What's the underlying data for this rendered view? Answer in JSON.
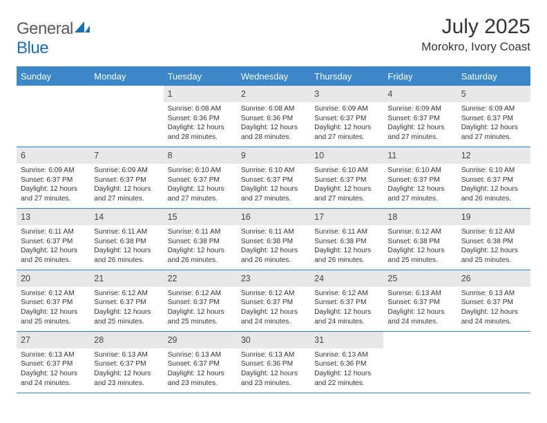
{
  "logo": {
    "general": "General",
    "blue": "Blue"
  },
  "title": "July 2025",
  "location": "Morokro, Ivory Coast",
  "colors": {
    "header_bar": "#3b87c8",
    "daynum_bg": "#e8e8e8",
    "text": "#333333",
    "logo_gray": "#5a5a5a",
    "logo_blue": "#1a6fb0"
  },
  "day_labels": [
    "Sunday",
    "Monday",
    "Tuesday",
    "Wednesday",
    "Thursday",
    "Friday",
    "Saturday"
  ],
  "weeks": [
    [
      null,
      null,
      {
        "n": "1",
        "sr": "Sunrise: 6:08 AM",
        "ss": "Sunset: 6:36 PM",
        "dl": "Daylight: 12 hours and 28 minutes."
      },
      {
        "n": "2",
        "sr": "Sunrise: 6:08 AM",
        "ss": "Sunset: 6:36 PM",
        "dl": "Daylight: 12 hours and 28 minutes."
      },
      {
        "n": "3",
        "sr": "Sunrise: 6:09 AM",
        "ss": "Sunset: 6:37 PM",
        "dl": "Daylight: 12 hours and 27 minutes."
      },
      {
        "n": "4",
        "sr": "Sunrise: 6:09 AM",
        "ss": "Sunset: 6:37 PM",
        "dl": "Daylight: 12 hours and 27 minutes."
      },
      {
        "n": "5",
        "sr": "Sunrise: 6:09 AM",
        "ss": "Sunset: 6:37 PM",
        "dl": "Daylight: 12 hours and 27 minutes."
      }
    ],
    [
      {
        "n": "6",
        "sr": "Sunrise: 6:09 AM",
        "ss": "Sunset: 6:37 PM",
        "dl": "Daylight: 12 hours and 27 minutes."
      },
      {
        "n": "7",
        "sr": "Sunrise: 6:09 AM",
        "ss": "Sunset: 6:37 PM",
        "dl": "Daylight: 12 hours and 27 minutes."
      },
      {
        "n": "8",
        "sr": "Sunrise: 6:10 AM",
        "ss": "Sunset: 6:37 PM",
        "dl": "Daylight: 12 hours and 27 minutes."
      },
      {
        "n": "9",
        "sr": "Sunrise: 6:10 AM",
        "ss": "Sunset: 6:37 PM",
        "dl": "Daylight: 12 hours and 27 minutes."
      },
      {
        "n": "10",
        "sr": "Sunrise: 6:10 AM",
        "ss": "Sunset: 6:37 PM",
        "dl": "Daylight: 12 hours and 27 minutes."
      },
      {
        "n": "11",
        "sr": "Sunrise: 6:10 AM",
        "ss": "Sunset: 6:37 PM",
        "dl": "Daylight: 12 hours and 27 minutes."
      },
      {
        "n": "12",
        "sr": "Sunrise: 6:10 AM",
        "ss": "Sunset: 6:37 PM",
        "dl": "Daylight: 12 hours and 26 minutes."
      }
    ],
    [
      {
        "n": "13",
        "sr": "Sunrise: 6:11 AM",
        "ss": "Sunset: 6:37 PM",
        "dl": "Daylight: 12 hours and 26 minutes."
      },
      {
        "n": "14",
        "sr": "Sunrise: 6:11 AM",
        "ss": "Sunset: 6:38 PM",
        "dl": "Daylight: 12 hours and 26 minutes."
      },
      {
        "n": "15",
        "sr": "Sunrise: 6:11 AM",
        "ss": "Sunset: 6:38 PM",
        "dl": "Daylight: 12 hours and 26 minutes."
      },
      {
        "n": "16",
        "sr": "Sunrise: 6:11 AM",
        "ss": "Sunset: 6:38 PM",
        "dl": "Daylight: 12 hours and 26 minutes."
      },
      {
        "n": "17",
        "sr": "Sunrise: 6:11 AM",
        "ss": "Sunset: 6:38 PM",
        "dl": "Daylight: 12 hours and 26 minutes."
      },
      {
        "n": "18",
        "sr": "Sunrise: 6:12 AM",
        "ss": "Sunset: 6:38 PM",
        "dl": "Daylight: 12 hours and 25 minutes."
      },
      {
        "n": "19",
        "sr": "Sunrise: 6:12 AM",
        "ss": "Sunset: 6:38 PM",
        "dl": "Daylight: 12 hours and 25 minutes."
      }
    ],
    [
      {
        "n": "20",
        "sr": "Sunrise: 6:12 AM",
        "ss": "Sunset: 6:37 PM",
        "dl": "Daylight: 12 hours and 25 minutes."
      },
      {
        "n": "21",
        "sr": "Sunrise: 6:12 AM",
        "ss": "Sunset: 6:37 PM",
        "dl": "Daylight: 12 hours and 25 minutes."
      },
      {
        "n": "22",
        "sr": "Sunrise: 6:12 AM",
        "ss": "Sunset: 6:37 PM",
        "dl": "Daylight: 12 hours and 25 minutes."
      },
      {
        "n": "23",
        "sr": "Sunrise: 6:12 AM",
        "ss": "Sunset: 6:37 PM",
        "dl": "Daylight: 12 hours and 24 minutes."
      },
      {
        "n": "24",
        "sr": "Sunrise: 6:12 AM",
        "ss": "Sunset: 6:37 PM",
        "dl": "Daylight: 12 hours and 24 minutes."
      },
      {
        "n": "25",
        "sr": "Sunrise: 6:13 AM",
        "ss": "Sunset: 6:37 PM",
        "dl": "Daylight: 12 hours and 24 minutes."
      },
      {
        "n": "26",
        "sr": "Sunrise: 6:13 AM",
        "ss": "Sunset: 6:37 PM",
        "dl": "Daylight: 12 hours and 24 minutes."
      }
    ],
    [
      {
        "n": "27",
        "sr": "Sunrise: 6:13 AM",
        "ss": "Sunset: 6:37 PM",
        "dl": "Daylight: 12 hours and 24 minutes."
      },
      {
        "n": "28",
        "sr": "Sunrise: 6:13 AM",
        "ss": "Sunset: 6:37 PM",
        "dl": "Daylight: 12 hours and 23 minutes."
      },
      {
        "n": "29",
        "sr": "Sunrise: 6:13 AM",
        "ss": "Sunset: 6:37 PM",
        "dl": "Daylight: 12 hours and 23 minutes."
      },
      {
        "n": "30",
        "sr": "Sunrise: 6:13 AM",
        "ss": "Sunset: 6:36 PM",
        "dl": "Daylight: 12 hours and 23 minutes."
      },
      {
        "n": "31",
        "sr": "Sunrise: 6:13 AM",
        "ss": "Sunset: 6:36 PM",
        "dl": "Daylight: 12 hours and 22 minutes."
      },
      null,
      null
    ]
  ]
}
